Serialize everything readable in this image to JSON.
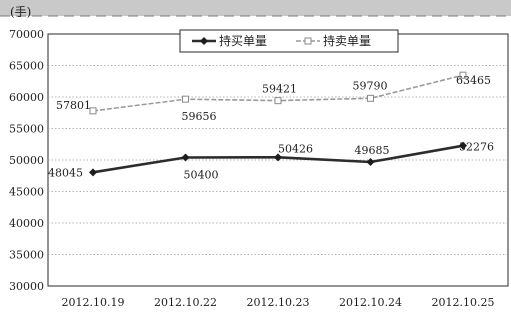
{
  "chart_data": {
    "type": "line",
    "title": "",
    "xlabel": "",
    "ylabel": "(手)",
    "categories": [
      "2012.10.19",
      "2012.10.22",
      "2012.10.23",
      "2012.10.24",
      "2012.10.25"
    ],
    "ylim": [
      30000,
      70000
    ],
    "y_ticks": [
      30000,
      35000,
      40000,
      45000,
      50000,
      55000,
      60000,
      65000,
      70000
    ],
    "grid": true,
    "legend_position": "top-center",
    "series": [
      {
        "name": "持买单量",
        "values": [
          48045,
          50400,
          50426,
          49685,
          52276
        ],
        "data_labels": [
          "48045",
          "50400",
          "50426",
          "49685",
          "52276"
        ],
        "color": "#2c2c2c"
      },
      {
        "name": "持卖单量",
        "values": [
          57801,
          59656,
          59421,
          59790,
          63465
        ],
        "data_labels": [
          "57801",
          "59656",
          "59421",
          "59790",
          "63465"
        ],
        "color": "#9a9a9a"
      }
    ]
  }
}
